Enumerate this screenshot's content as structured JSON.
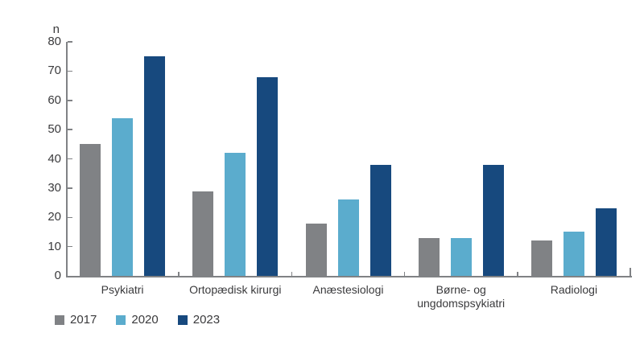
{
  "chart_data": {
    "type": "bar",
    "title": "",
    "ylabel": "n",
    "xlabel": "",
    "ylim": [
      0,
      80
    ],
    "yticks": [
      0,
      10,
      20,
      30,
      40,
      50,
      60,
      70,
      80
    ],
    "grid": false,
    "legend_position": "bottom-left",
    "categories": [
      "Psykiatri",
      "Ortopædisk kirurgi",
      "Anæstesiologi",
      "Børne- og ungdomspsykiatri",
      "Radiologi"
    ],
    "series": [
      {
        "name": "2017",
        "color": "#808285",
        "values": [
          45,
          29,
          18,
          13,
          12
        ]
      },
      {
        "name": "2020",
        "color": "#5BACCD",
        "values": [
          54,
          42,
          26,
          13,
          15
        ]
      },
      {
        "name": "2023",
        "color": "#17497E",
        "values": [
          75,
          68,
          38,
          38,
          23
        ]
      }
    ]
  },
  "colors": {
    "axis": "#808285",
    "text": "#3A3A3C",
    "background": "#FFFFFF"
  }
}
